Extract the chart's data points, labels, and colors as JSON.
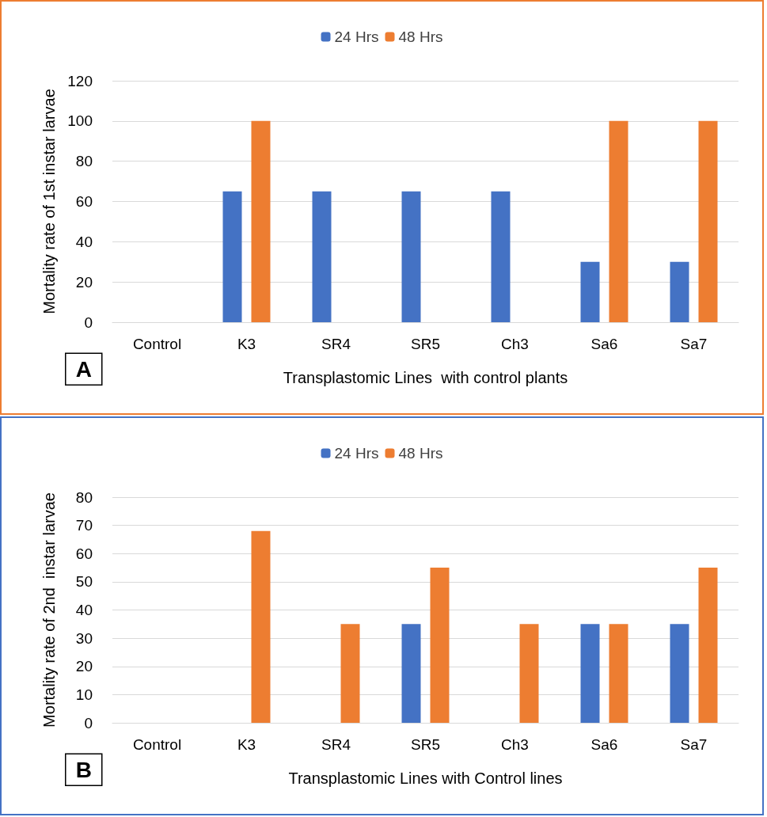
{
  "chart_data": [
    {
      "type": "bar",
      "xlabel": "Transplastomic Lines  with control plants",
      "ylabel": "Mortality rate of 1st instar larvae",
      "categories": [
        "Control",
        "K3",
        "SR4",
        "SR5",
        "Ch3",
        "Sa6",
        "Sa7"
      ],
      "series": [
        {
          "name": "24 Hrs",
          "color": "#4472c4",
          "values": [
            0,
            65,
            65,
            65,
            65,
            30,
            30
          ]
        },
        {
          "name": "48 Hrs",
          "color": "#ed7d31",
          "values": [
            0,
            100,
            0,
            0,
            0,
            100,
            100
          ]
        }
      ],
      "ylim": [
        0,
        120
      ],
      "yticks": [
        0,
        20,
        40,
        60,
        80,
        100,
        120
      ],
      "grid": "y",
      "legend": "top",
      "annotations": [
        "A"
      ]
    },
    {
      "type": "bar",
      "xlabel": "Transplastomic Lines with Control lines",
      "ylabel": "Mortality rate of 2nd  instar larvae",
      "categories": [
        "Control",
        "K3",
        "SR4",
        "SR5",
        "Ch3",
        "Sa6",
        "Sa7"
      ],
      "series": [
        {
          "name": "24 Hrs",
          "color": "#4472c4",
          "values": [
            0,
            0,
            0,
            35,
            0,
            35,
            35
          ]
        },
        {
          "name": "48 Hrs",
          "color": "#ed7d31",
          "values": [
            0,
            68,
            35,
            55,
            35,
            35,
            55
          ]
        }
      ],
      "ylim": [
        0,
        80
      ],
      "yticks": [
        0,
        10,
        20,
        30,
        40,
        50,
        60,
        70,
        80
      ],
      "grid": "y",
      "legend": "top",
      "annotations": [
        "B"
      ]
    }
  ]
}
